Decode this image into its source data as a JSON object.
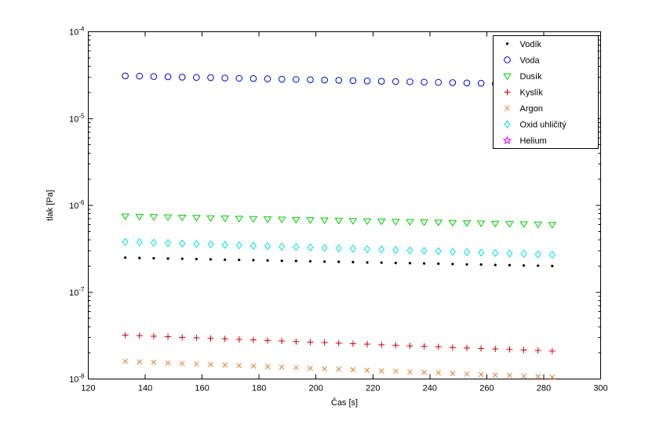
{
  "chart_data": {
    "type": "scatter",
    "title": "",
    "xlabel": "Čas [s]",
    "ylabel": "tlak [Pa]",
    "xlim": [
      120,
      300
    ],
    "y_scale": "log10",
    "ylim": [
      1e-08,
      0.0001
    ],
    "ylim_log10": [
      -8,
      -4
    ],
    "x_ticks": [
      120,
      140,
      160,
      180,
      200,
      220,
      240,
      260,
      280,
      300
    ],
    "y_tick_exponents": [
      -8,
      -7,
      -6,
      -5,
      -4
    ],
    "grid": false,
    "legend_position": "top-right",
    "x": [
      133,
      138,
      143,
      148,
      153,
      158,
      163,
      168,
      173,
      178,
      183,
      188,
      193,
      198,
      203,
      208,
      213,
      218,
      223,
      228,
      233,
      238,
      243,
      248,
      253,
      258,
      263,
      268,
      273,
      278,
      283
    ],
    "series": [
      {
        "id": "vodik",
        "name": "Vodík",
        "marker": "point",
        "color": "#000000",
        "values": [
          2.5e-07,
          2.48e-07,
          2.46e-07,
          2.44e-07,
          2.43e-07,
          2.41e-07,
          2.39e-07,
          2.37e-07,
          2.36e-07,
          2.34e-07,
          2.32e-07,
          2.3e-07,
          2.29e-07,
          2.27e-07,
          2.25e-07,
          2.24e-07,
          2.22e-07,
          2.2e-07,
          2.19e-07,
          2.17e-07,
          2.16e-07,
          2.14e-07,
          2.13e-07,
          2.11e-07,
          2.09e-07,
          2.08e-07,
          2.06e-07,
          2.05e-07,
          2.03e-07,
          2.02e-07,
          2e-07
        ]
      },
      {
        "id": "voda",
        "name": "Voda",
        "marker": "circle",
        "color": "#0000cc",
        "values": [
          3.1e-05,
          3.08e-05,
          3.05e-05,
          3.03e-05,
          3e-05,
          2.98e-05,
          2.96e-05,
          2.93e-05,
          2.91e-05,
          2.89e-05,
          2.87e-05,
          2.84e-05,
          2.82e-05,
          2.8e-05,
          2.78e-05,
          2.76e-05,
          2.73e-05,
          2.71e-05,
          2.69e-05,
          2.67e-05,
          2.65e-05,
          2.63e-05,
          2.61e-05,
          2.59e-05,
          2.57e-05,
          2.55e-05,
          2.53e-05,
          2.51e-05,
          2.49e-05,
          2.47e-05,
          2.45e-05
        ]
      },
      {
        "id": "dusik",
        "name": "Dusík",
        "marker": "triangle-down",
        "color": "#00cc00",
        "values": [
          7.5e-07,
          7.44e-07,
          7.39e-07,
          7.33e-07,
          7.28e-07,
          7.23e-07,
          7.17e-07,
          7.12e-07,
          7.07e-07,
          7.02e-07,
          6.96e-07,
          6.91e-07,
          6.86e-07,
          6.81e-07,
          6.76e-07,
          6.71e-07,
          6.66e-07,
          6.61e-07,
          6.57e-07,
          6.52e-07,
          6.47e-07,
          6.42e-07,
          6.38e-07,
          6.33e-07,
          6.28e-07,
          6.24e-07,
          6.19e-07,
          6.15e-07,
          6.1e-07,
          6.06e-07,
          6.01e-07
        ]
      },
      {
        "id": "kyslik",
        "name": "Kyslík",
        "marker": "plus",
        "color": "#cc0000",
        "values": [
          3.2e-08,
          3.16e-08,
          3.11e-08,
          3.07e-08,
          3.02e-08,
          2.98e-08,
          2.94e-08,
          2.9e-08,
          2.86e-08,
          2.82e-08,
          2.78e-08,
          2.74e-08,
          2.7e-08,
          2.66e-08,
          2.63e-08,
          2.59e-08,
          2.55e-08,
          2.52e-08,
          2.48e-08,
          2.45e-08,
          2.41e-08,
          2.38e-08,
          2.35e-08,
          2.31e-08,
          2.28e-08,
          2.25e-08,
          2.22e-08,
          2.19e-08,
          2.16e-08,
          2.13e-08,
          2.1e-08
        ]
      },
      {
        "id": "argon",
        "name": "Argon",
        "marker": "x",
        "color": "#e08030",
        "values": [
          1.6e-08,
          1.58e-08,
          1.56e-08,
          1.53e-08,
          1.51e-08,
          1.49e-08,
          1.47e-08,
          1.45e-08,
          1.43e-08,
          1.41e-08,
          1.39e-08,
          1.37e-08,
          1.35e-08,
          1.33e-08,
          1.31e-08,
          1.3e-08,
          1.28e-08,
          1.26e-08,
          1.24e-08,
          1.23e-08,
          1.21e-08,
          1.19e-08,
          1.18e-08,
          1.16e-08,
          1.14e-08,
          1.13e-08,
          1.11e-08,
          1.1e-08,
          1.08e-08,
          1.07e-08,
          1.05e-08
        ]
      },
      {
        "id": "oxid-uhlicity",
        "name": "Oxid uhličitý",
        "marker": "diamond",
        "color": "#00e0e0",
        "values": [
          3.8e-07,
          3.76e-07,
          3.71e-07,
          3.67e-07,
          3.63e-07,
          3.59e-07,
          3.55e-07,
          3.51e-07,
          3.47e-07,
          3.43e-07,
          3.39e-07,
          3.35e-07,
          3.31e-07,
          3.28e-07,
          3.24e-07,
          3.2e-07,
          3.17e-07,
          3.13e-07,
          3.1e-07,
          3.06e-07,
          3.03e-07,
          2.99e-07,
          2.96e-07,
          2.93e-07,
          2.89e-07,
          2.86e-07,
          2.83e-07,
          2.8e-07,
          2.77e-07,
          2.73e-07,
          2.7e-07
        ]
      },
      {
        "id": "helium",
        "name": "Helium",
        "marker": "pentagram",
        "color": "#ee00ee",
        "values": []
      }
    ],
    "legend_order": [
      "vodik",
      "voda",
      "dusik",
      "kyslik",
      "argon",
      "oxid-uhlicity",
      "helium"
    ]
  }
}
